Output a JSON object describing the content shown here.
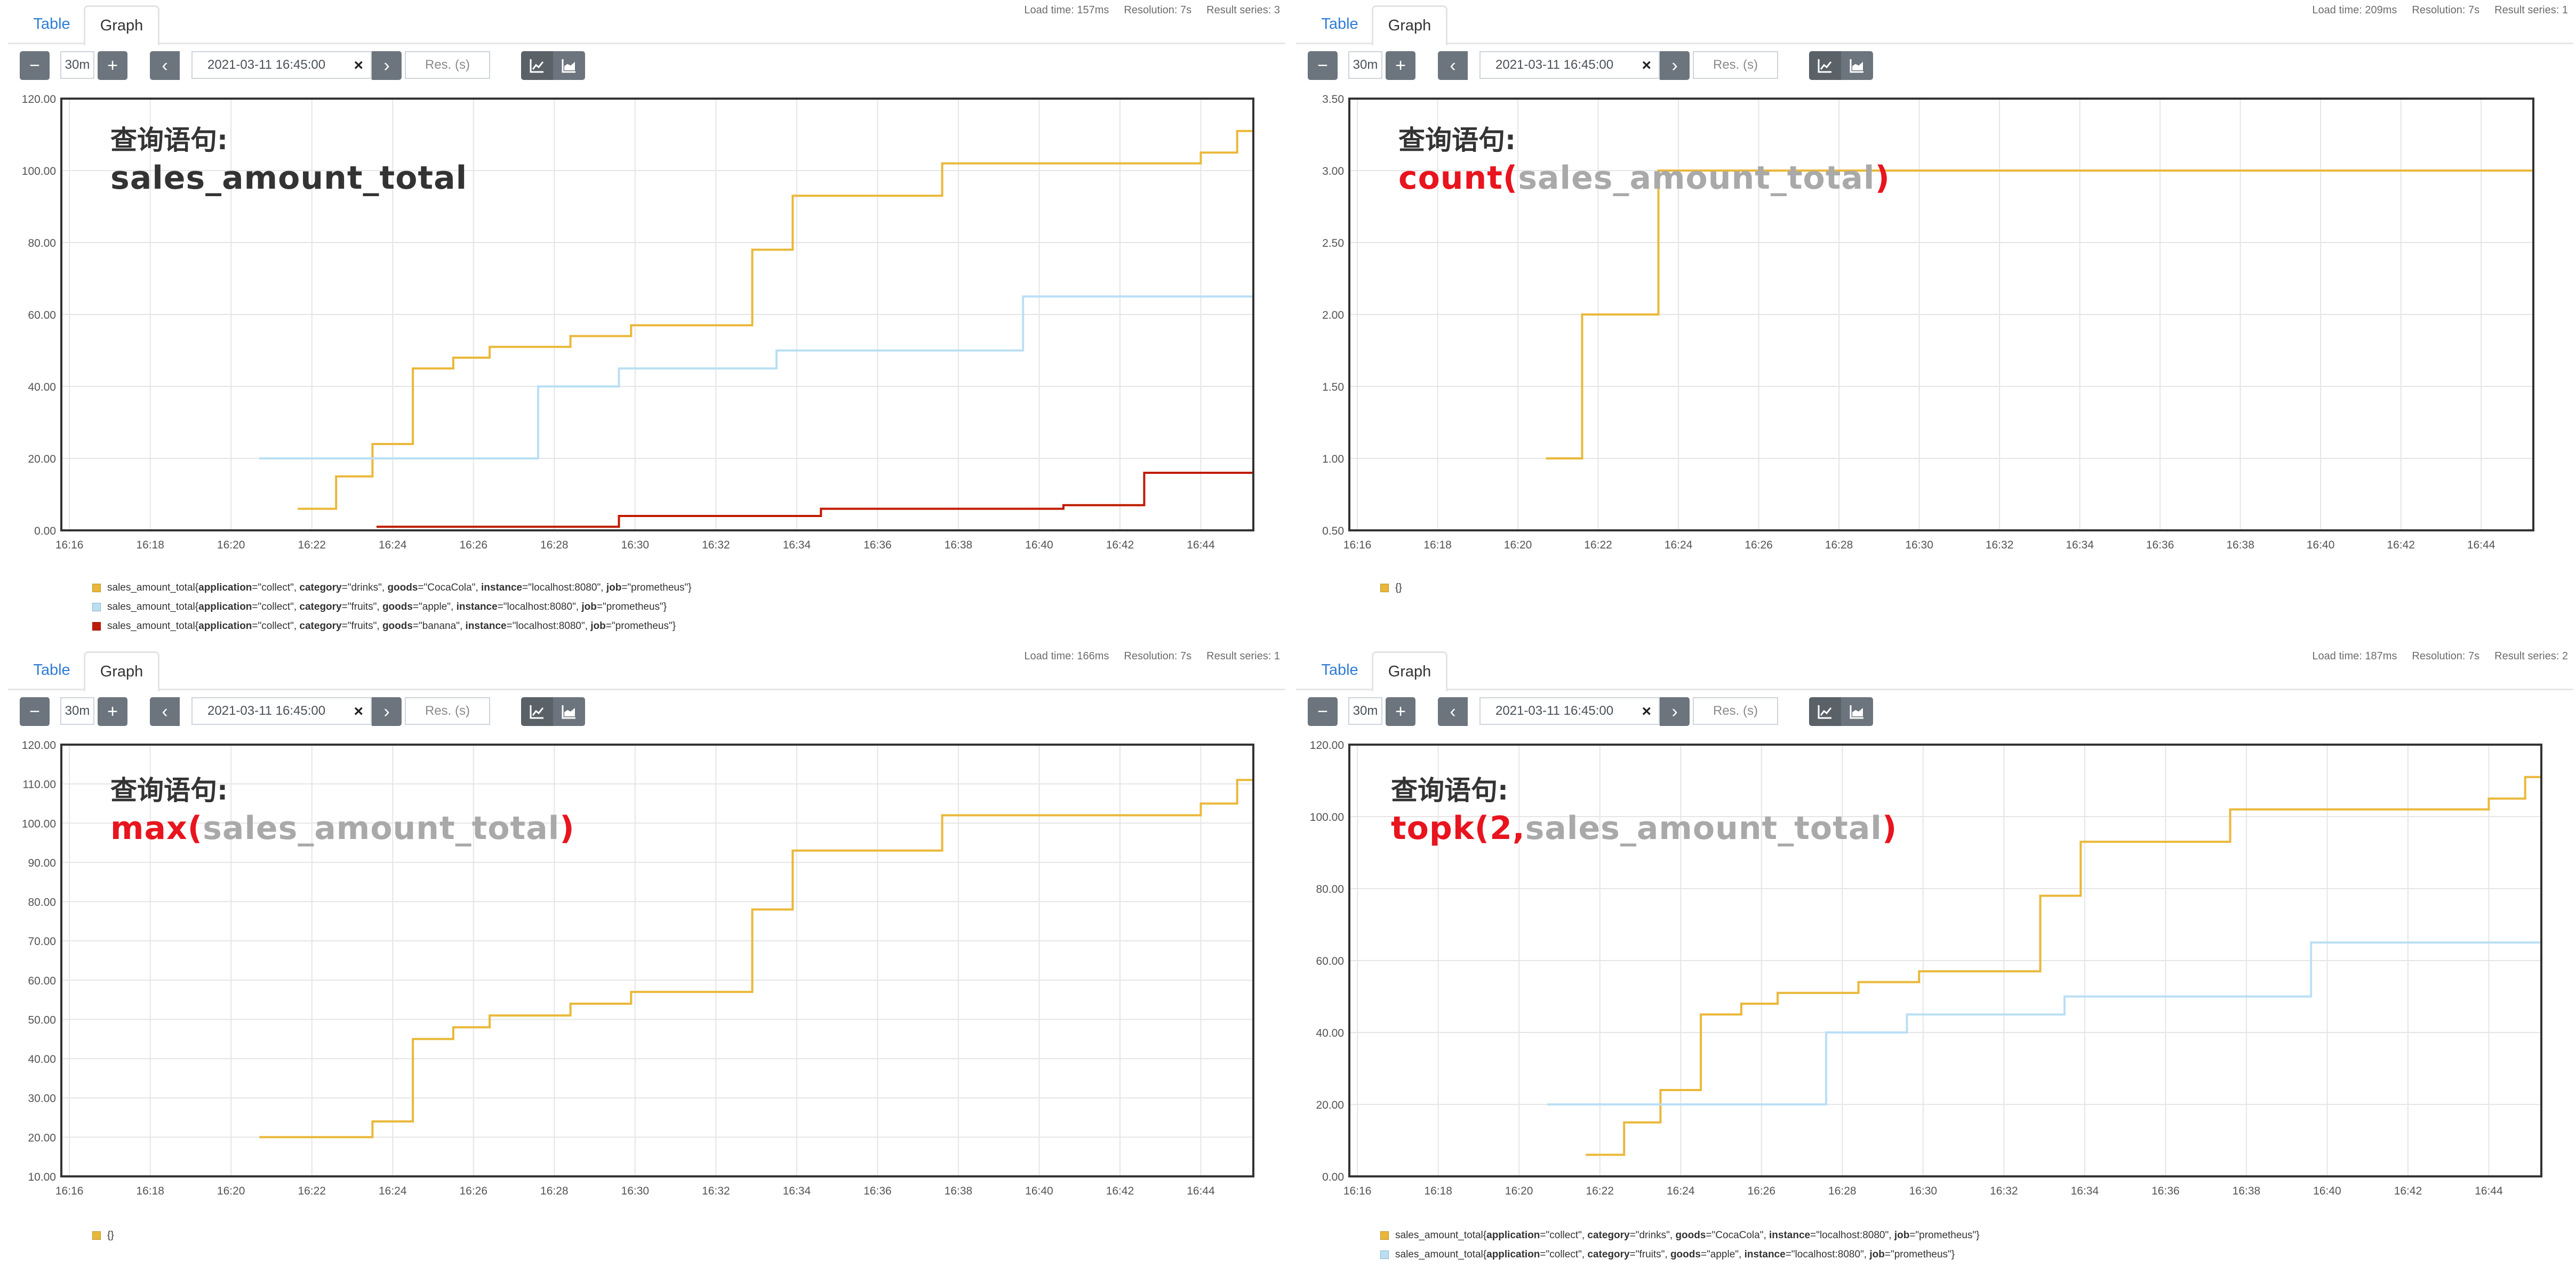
{
  "tabs": {
    "table": "Table",
    "graph": "Graph"
  },
  "controls": {
    "minus": "−",
    "plus": "+",
    "range": "30m",
    "prev": "‹",
    "next": "›",
    "end_time": "2021-03-11 16:45:00",
    "clear": "×",
    "resolution_placeholder": "Res. (s)",
    "chart_icons": [
      "line-chart-icon",
      "stacked-chart-icon"
    ]
  },
  "colors": {
    "yellow": "#EAB839",
    "blue": "#BADFF4",
    "red": "#BF1B00",
    "query_red": "#E8141E",
    "query_gray": "#A9A9A9"
  },
  "panels": [
    {
      "stats": {
        "load": "Load time: 157ms",
        "resolution": "Resolution: 7s",
        "series": "Result series: 3"
      },
      "query": {
        "title": "查询语句:",
        "parts": [
          {
            "text": "sales_amount_total",
            "style": "dark"
          }
        ]
      },
      "legend": [
        {
          "metric": "sales_amount_total",
          "labels": [
            [
              "application",
              "collect"
            ],
            [
              "category",
              "drinks"
            ],
            [
              "goods",
              "CocaCola"
            ],
            [
              "instance",
              "localhost:8080"
            ],
            [
              "job",
              "prometheus"
            ]
          ],
          "color": "#EAB839"
        },
        {
          "metric": "sales_amount_total",
          "labels": [
            [
              "application",
              "collect"
            ],
            [
              "category",
              "fruits"
            ],
            [
              "goods",
              "apple"
            ],
            [
              "instance",
              "localhost:8080"
            ],
            [
              "job",
              "prometheus"
            ]
          ],
          "color": "#BADFF4"
        },
        {
          "metric": "sales_amount_total",
          "labels": [
            [
              "application",
              "collect"
            ],
            [
              "category",
              "fruits"
            ],
            [
              "goods",
              "banana"
            ],
            [
              "instance",
              "localhost:8080"
            ],
            [
              "job",
              "prometheus"
            ]
          ],
          "color": "#BF1B00"
        }
      ]
    },
    {
      "stats": {
        "load": "Load time: 209ms",
        "resolution": "Resolution: 7s",
        "series": "Result series: 1"
      },
      "query": {
        "title": "查询语句:",
        "parts": [
          {
            "text": "count(",
            "style": "red"
          },
          {
            "text": "sales_amount_total",
            "style": "gray"
          },
          {
            "text": ")",
            "style": "red"
          }
        ]
      },
      "legend": [
        {
          "metric": "{}",
          "labels": [],
          "color": "#EAB839"
        }
      ]
    },
    {
      "stats": {
        "load": "Load time: 166ms",
        "resolution": "Resolution: 7s",
        "series": "Result series: 1"
      },
      "query": {
        "title": "查询语句:",
        "parts": [
          {
            "text": "max(",
            "style": "red"
          },
          {
            "text": "sales_amount_total",
            "style": "gray"
          },
          {
            "text": ")",
            "style": "red"
          }
        ]
      },
      "legend": [
        {
          "metric": "{}",
          "labels": [],
          "color": "#EAB839"
        }
      ]
    },
    {
      "stats": {
        "load": "Load time: 187ms",
        "resolution": "Resolution: 7s",
        "series": "Result series: 2"
      },
      "query": {
        "title": "查询语句:",
        "parts": [
          {
            "text": "topk(2,",
            "style": "red"
          },
          {
            "text": "sales_amount_total",
            "style": "gray"
          },
          {
            "text": ")",
            "style": "red"
          }
        ]
      },
      "legend": [
        {
          "metric": "sales_amount_total",
          "labels": [
            [
              "application",
              "collect"
            ],
            [
              "category",
              "drinks"
            ],
            [
              "goods",
              "CocaCola"
            ],
            [
              "instance",
              "localhost:8080"
            ],
            [
              "job",
              "prometheus"
            ]
          ],
          "color": "#EAB839"
        },
        {
          "metric": "sales_amount_total",
          "labels": [
            [
              "application",
              "collect"
            ],
            [
              "category",
              "fruits"
            ],
            [
              "goods",
              "apple"
            ],
            [
              "instance",
              "localhost:8080"
            ],
            [
              "job",
              "prometheus"
            ]
          ],
          "color": "#BADFF4"
        }
      ]
    }
  ],
  "chart_data": [
    {
      "type": "line",
      "x_ticks": [
        "16:16",
        "16:18",
        "16:20",
        "16:22",
        "16:24",
        "16:26",
        "16:28",
        "16:30",
        "16:32",
        "16:34",
        "16:36",
        "16:38",
        "16:40",
        "16:42",
        "16:44"
      ],
      "xlim": [
        15.8,
        45.3
      ],
      "ylim": [
        0,
        120
      ],
      "y_ticks": [
        "0.00",
        "20.00",
        "40.00",
        "60.00",
        "80.00",
        "100.00",
        "120.00"
      ],
      "series": [
        {
          "name": "sales_amount_total{application=\"collect\", category=\"drinks\", goods=\"CocaCola\", instance=\"localhost:8080\", job=\"prometheus\"}",
          "color": "#EAB839",
          "points": [
            [
              21.65,
              6
            ],
            [
              22.6,
              6
            ],
            [
              22.6,
              15
            ],
            [
              23.5,
              15
            ],
            [
              23.5,
              24
            ],
            [
              24.5,
              24
            ],
            [
              24.5,
              45
            ],
            [
              25.5,
              45
            ],
            [
              25.5,
              48
            ],
            [
              26.4,
              48
            ],
            [
              26.4,
              51
            ],
            [
              28.4,
              51
            ],
            [
              28.4,
              54
            ],
            [
              29.9,
              54
            ],
            [
              29.9,
              57
            ],
            [
              32.9,
              57
            ],
            [
              32.9,
              78
            ],
            [
              33.9,
              78
            ],
            [
              33.9,
              93
            ],
            [
              37.6,
              93
            ],
            [
              37.6,
              102
            ],
            [
              44.0,
              102
            ],
            [
              44.0,
              105
            ],
            [
              44.9,
              105
            ],
            [
              44.9,
              111
            ],
            [
              45.3,
              111
            ]
          ]
        },
        {
          "name": "sales_amount_total{application=\"collect\", category=\"fruits\", goods=\"apple\", instance=\"localhost:8080\", job=\"prometheus\"}",
          "color": "#BADFF4",
          "points": [
            [
              20.7,
              20
            ],
            [
              27.6,
              20
            ],
            [
              27.6,
              40
            ],
            [
              29.6,
              40
            ],
            [
              29.6,
              45
            ],
            [
              33.5,
              45
            ],
            [
              33.5,
              50
            ],
            [
              39.6,
              50
            ],
            [
              39.6,
              65
            ],
            [
              45.3,
              65
            ]
          ]
        },
        {
          "name": "sales_amount_total{application=\"collect\", category=\"fruits\", goods=\"banana\", instance=\"localhost:8080\", job=\"prometheus\"}",
          "color": "#BF1B00",
          "points": [
            [
              23.6,
              1
            ],
            [
              29.6,
              1
            ],
            [
              29.6,
              4
            ],
            [
              34.6,
              4
            ],
            [
              34.6,
              6
            ],
            [
              40.6,
              6
            ],
            [
              40.6,
              7
            ],
            [
              42.6,
              7
            ],
            [
              42.6,
              16
            ],
            [
              45.3,
              16
            ]
          ]
        }
      ]
    },
    {
      "type": "line",
      "x_ticks": [
        "16:16",
        "16:18",
        "16:20",
        "16:22",
        "16:24",
        "16:26",
        "16:28",
        "16:30",
        "16:32",
        "16:34",
        "16:36",
        "16:38",
        "16:40",
        "16:42",
        "16:44"
      ],
      "xlim": [
        15.8,
        45.3
      ],
      "ylim": [
        0.5,
        3.5
      ],
      "y_ticks": [
        "0.50",
        "1.00",
        "1.50",
        "2.00",
        "2.50",
        "3.00",
        "3.50"
      ],
      "series": [
        {
          "name": "{}",
          "color": "#EAB839",
          "points": [
            [
              20.7,
              1
            ],
            [
              21.6,
              1
            ],
            [
              21.6,
              2
            ],
            [
              23.5,
              2
            ],
            [
              23.5,
              3
            ],
            [
              45.3,
              3
            ]
          ]
        }
      ]
    },
    {
      "type": "line",
      "x_ticks": [
        "16:16",
        "16:18",
        "16:20",
        "16:22",
        "16:24",
        "16:26",
        "16:28",
        "16:30",
        "16:32",
        "16:34",
        "16:36",
        "16:38",
        "16:40",
        "16:42",
        "16:44"
      ],
      "xlim": [
        15.8,
        45.3
      ],
      "ylim": [
        10,
        120
      ],
      "y_ticks": [
        "10.00",
        "20.00",
        "30.00",
        "40.00",
        "50.00",
        "60.00",
        "70.00",
        "80.00",
        "90.00",
        "100.00",
        "110.00",
        "120.00"
      ],
      "series": [
        {
          "name": "{}",
          "color": "#EAB839",
          "points": [
            [
              20.7,
              20
            ],
            [
              23.5,
              20
            ],
            [
              23.5,
              24
            ],
            [
              24.5,
              24
            ],
            [
              24.5,
              45
            ],
            [
              25.5,
              45
            ],
            [
              25.5,
              48
            ],
            [
              26.4,
              48
            ],
            [
              26.4,
              51
            ],
            [
              28.4,
              51
            ],
            [
              28.4,
              54
            ],
            [
              29.9,
              54
            ],
            [
              29.9,
              57
            ],
            [
              32.9,
              57
            ],
            [
              32.9,
              78
            ],
            [
              33.9,
              78
            ],
            [
              33.9,
              93
            ],
            [
              37.6,
              93
            ],
            [
              37.6,
              102
            ],
            [
              44.0,
              102
            ],
            [
              44.0,
              105
            ],
            [
              44.9,
              105
            ],
            [
              44.9,
              111
            ],
            [
              45.3,
              111
            ]
          ]
        }
      ]
    },
    {
      "type": "line",
      "x_ticks": [
        "16:16",
        "16:18",
        "16:20",
        "16:22",
        "16:24",
        "16:26",
        "16:28",
        "16:30",
        "16:32",
        "16:34",
        "16:36",
        "16:38",
        "16:40",
        "16:42",
        "16:44"
      ],
      "xlim": [
        15.8,
        45.3
      ],
      "ylim": [
        0,
        120
      ],
      "y_ticks": [
        "0.00",
        "20.00",
        "40.00",
        "60.00",
        "80.00",
        "100.00",
        "120.00"
      ],
      "series": [
        {
          "name": "sales_amount_total{application=\"collect\", category=\"drinks\", goods=\"CocaCola\", instance=\"localhost:8080\", job=\"prometheus\"}",
          "color": "#EAB839",
          "points": [
            [
              21.65,
              6
            ],
            [
              22.6,
              6
            ],
            [
              22.6,
              15
            ],
            [
              23.5,
              15
            ],
            [
              23.5,
              24
            ],
            [
              24.5,
              24
            ],
            [
              24.5,
              45
            ],
            [
              25.5,
              45
            ],
            [
              25.5,
              48
            ],
            [
              26.4,
              48
            ],
            [
              26.4,
              51
            ],
            [
              28.4,
              51
            ],
            [
              28.4,
              54
            ],
            [
              29.9,
              54
            ],
            [
              29.9,
              57
            ],
            [
              32.9,
              57
            ],
            [
              32.9,
              78
            ],
            [
              33.9,
              78
            ],
            [
              33.9,
              93
            ],
            [
              37.6,
              93
            ],
            [
              37.6,
              102
            ],
            [
              44.0,
              102
            ],
            [
              44.0,
              105
            ],
            [
              44.9,
              105
            ],
            [
              44.9,
              111
            ],
            [
              45.3,
              111
            ]
          ]
        },
        {
          "name": "sales_amount_total{application=\"collect\", category=\"fruits\", goods=\"apple\", instance=\"localhost:8080\", job=\"prometheus\"}",
          "color": "#BADFF4",
          "points": [
            [
              20.7,
              20
            ],
            [
              27.6,
              20
            ],
            [
              27.6,
              40
            ],
            [
              29.6,
              40
            ],
            [
              29.6,
              45
            ],
            [
              33.5,
              45
            ],
            [
              33.5,
              50
            ],
            [
              39.6,
              50
            ],
            [
              39.6,
              65
            ],
            [
              45.3,
              65
            ]
          ]
        }
      ]
    }
  ]
}
